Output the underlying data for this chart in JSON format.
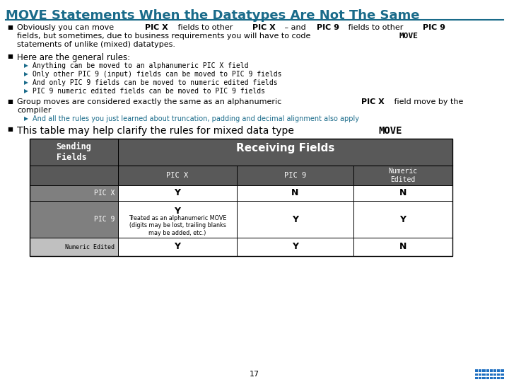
{
  "title": "MOVE Statements When the Datatypes Are Not The Same",
  "title_color": "#1a6b8a",
  "bg_color": "#ffffff",
  "bullet1_segments": [
    [
      "Obviously you can move ",
      false,
      false
    ],
    [
      "PIC X",
      true,
      false
    ],
    [
      " fields to other ",
      false,
      false
    ],
    [
      "PIC X",
      true,
      false
    ],
    [
      " – and ",
      false,
      false
    ],
    [
      "PIC 9",
      true,
      false
    ],
    [
      " fields to other ",
      false,
      false
    ],
    [
      "PIC 9",
      true,
      false
    ]
  ],
  "bullet1_line2_segments": [
    [
      "fields, but sometimes, due to business requirements you will have to code ",
      false,
      false
    ],
    [
      "MOVE",
      true,
      true
    ]
  ],
  "bullet1_line3": "statements of unlike (mixed) datatypes.",
  "bullet2_header": "Here are the general rules:",
  "sub_bullets": [
    "Anything can be moved to an alphanumeric PIC X field",
    "Only other PIC 9 (input) fields can be moved to PIC 9 fields",
    "And only PIC 9 fields can be moved to numeric edited fields",
    "PIC 9 numeric edited fields can be moved to PIC 9 fields"
  ],
  "bullet3_line1_segments": [
    [
      "Group moves are considered exactly the same as an alphanumeric ",
      false,
      false
    ],
    [
      "PIC X",
      true,
      false
    ],
    [
      " field move by the",
      false,
      false
    ]
  ],
  "bullet3_line2": "compiler",
  "bullet3_sub": "And all the rules you just learned about truncation, padding and decimal alignment also apply",
  "bullet3_sub_color": "#1a6b8a",
  "bullet4_segments": [
    [
      "This table may help clarify the rules for mixed data type ",
      false,
      false
    ],
    [
      "MOVE",
      true,
      true
    ]
  ],
  "table_header_bg": "#595959",
  "table_row_bg": "#7f7f7f",
  "table_num_edited_bg": "#c0c0c0",
  "table_white": "#ffffff",
  "page_number": "17",
  "ibm_logo_color": "#1f70c1"
}
